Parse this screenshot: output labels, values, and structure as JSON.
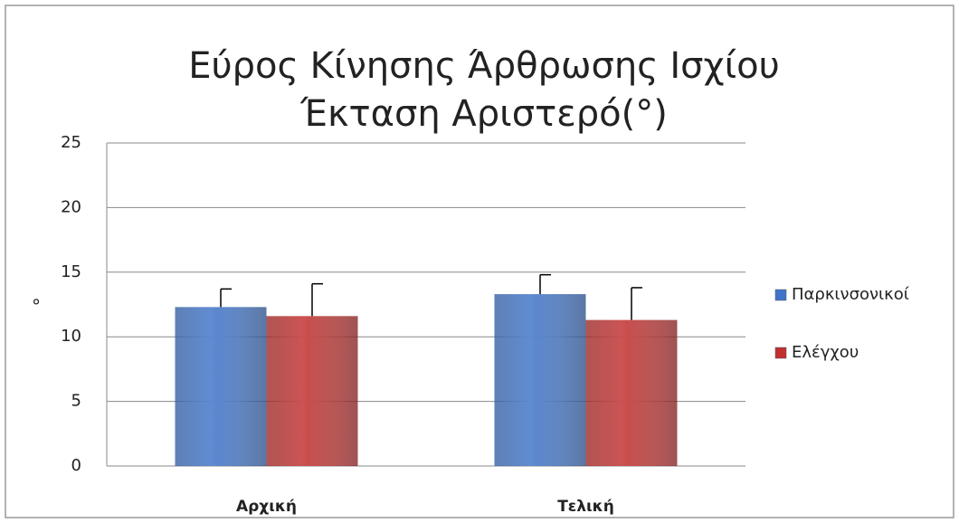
{
  "chart_data": {
    "type": "bar",
    "title": [
      "Εύρος Κίνησης Άρθρωσης Ισχίου",
      "Έκταση Αριστερό(°)"
    ],
    "y_label": "°",
    "categories": [
      "Αρχική",
      "Τελική"
    ],
    "series": [
      {
        "name": "Παρκινσονικοί",
        "color": "#3f74c9",
        "values": [
          12.3,
          13.3
        ],
        "errors": [
          1.4,
          1.5
        ]
      },
      {
        "name": "Ελέγχου",
        "color": "#c0302f",
        "values": [
          11.6,
          11.3
        ],
        "errors": [
          2.5,
          2.5
        ]
      }
    ],
    "ylim": [
      0,
      25
    ],
    "yticks": [
      0,
      5,
      10,
      15,
      20,
      25
    ],
    "grid": true,
    "legend": "right"
  }
}
